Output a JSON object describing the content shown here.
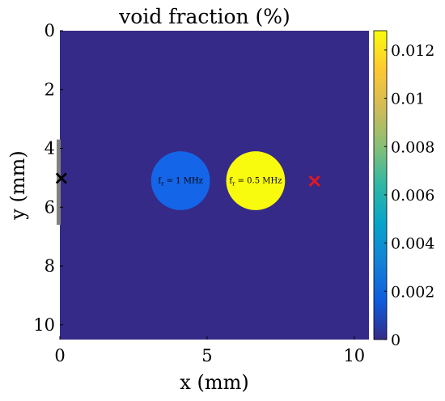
{
  "chart_data": {
    "type": "heatmap",
    "title": "void fraction (%)",
    "xlabel": "x (mm)",
    "ylabel": "y (mm)",
    "xlim": [
      0,
      10.5
    ],
    "ylim": [
      0,
      10.5
    ],
    "y_reversed": true,
    "xticks": [
      "0",
      "5",
      "10"
    ],
    "yticks": [
      "0",
      "2",
      "4",
      "6",
      "8",
      "10"
    ],
    "background_value": 0,
    "colorbar": {
      "min": 0,
      "max": 0.0128,
      "ticks": [
        "0",
        "0.002",
        "0.004",
        "0.006",
        "0.008",
        "0.01",
        "0.012"
      ],
      "colormap": "parula",
      "colors": [
        "#352a87",
        "#0f5cdd",
        "#1481d6",
        "#06a4ca",
        "#2eb7a4",
        "#87bf77",
        "#d1bb59",
        "#fec832",
        "#f9fb0e"
      ]
    },
    "regions": [
      {
        "label_main": "f",
        "label_sub": "r",
        "label_rest": "= 1 MHz",
        "center_x": 4.1,
        "center_y": 5.1,
        "radius": 1.0,
        "value": 0.0027,
        "color": "#1565e8"
      },
      {
        "label_main": "f",
        "label_sub": "r",
        "label_rest": "= 0.5 MHz",
        "center_x": 6.65,
        "center_y": 5.1,
        "radius": 1.0,
        "value": 0.0128,
        "color": "#f9fb0e"
      }
    ],
    "markers": [
      {
        "symbol": "×",
        "x": 0.05,
        "y": 5.0,
        "color": "#000000"
      },
      {
        "symbol": "×",
        "x": 8.65,
        "y": 5.1,
        "color": "#e8171f"
      }
    ],
    "source_bar": {
      "x": 0,
      "y_start": 3.7,
      "y_end": 6.6,
      "color": "#808080"
    }
  }
}
